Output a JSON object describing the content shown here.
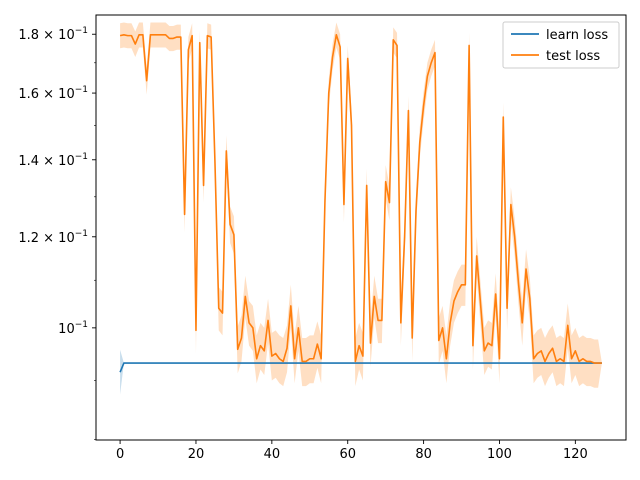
{
  "chart_data": {
    "type": "line",
    "title": "",
    "xlabel": "",
    "ylabel": "",
    "xlim": [
      -6.35,
      133.35
    ],
    "ylim_log10": [
      -1.0975,
      -0.728
    ],
    "yscale": "log",
    "grid": false,
    "legend": {
      "placement": "top-right",
      "entries": [
        "learn loss",
        "test loss"
      ]
    },
    "x_ticks": [
      {
        "value": 0,
        "label": "0"
      },
      {
        "value": 20,
        "label": "20"
      },
      {
        "value": 40,
        "label": "40"
      },
      {
        "value": 60,
        "label": "60"
      },
      {
        "value": 80,
        "label": "80"
      },
      {
        "value": 100,
        "label": "100"
      },
      {
        "value": 120,
        "label": "120"
      }
    ],
    "y_ticks": [
      {
        "value": 0.1,
        "base": "10",
        "exp": "−1",
        "mantissa": ""
      },
      {
        "value": 0.12,
        "base": "10",
        "exp": "−1",
        "mantissa": "1.2 × "
      },
      {
        "value": 0.14,
        "base": "10",
        "exp": "−1",
        "mantissa": "1.4 × "
      },
      {
        "value": 0.16,
        "base": "10",
        "exp": "−1",
        "mantissa": "1.6 × "
      },
      {
        "value": 0.18,
        "base": "10",
        "exp": "−1",
        "mantissa": "1.8 × "
      }
    ],
    "series": [
      {
        "name": "learn loss",
        "color": "#1f77b4",
        "band_color": "#1f77b4",
        "x": [
          0,
          1,
          127
        ],
        "y": [
          0.0915,
          0.0932,
          0.0932
        ],
        "lower": [
          0.0875,
          0.0932,
          0.0932
        ],
        "upper": [
          0.0957,
          0.0932,
          0.0932
        ]
      },
      {
        "name": "test loss",
        "color": "#ff7f0e",
        "band_color": "#ff7f0e",
        "x": [
          0,
          1,
          2,
          3,
          4,
          5,
          6,
          7,
          8,
          9,
          10,
          11,
          12,
          13,
          14,
          15,
          16,
          17,
          18,
          19,
          20,
          21,
          22,
          23,
          24,
          25,
          26,
          27,
          28,
          29,
          30,
          31,
          32,
          33,
          34,
          35,
          36,
          37,
          38,
          39,
          40,
          41,
          42,
          43,
          44,
          45,
          46,
          47,
          48,
          49,
          50,
          51,
          52,
          53,
          54,
          55,
          56,
          57,
          58,
          59,
          60,
          61,
          62,
          63,
          64,
          65,
          66,
          67,
          68,
          69,
          70,
          71,
          72,
          73,
          74,
          75,
          76,
          77,
          78,
          79,
          80,
          81,
          82,
          83,
          84,
          85,
          86,
          87,
          88,
          89,
          90,
          91,
          92,
          93,
          94,
          95,
          96,
          97,
          98,
          99,
          100,
          101,
          102,
          103,
          104,
          105,
          106,
          107,
          108,
          109,
          110,
          111,
          112,
          113,
          114,
          115,
          116,
          117,
          118,
          119,
          120,
          121,
          122,
          123,
          124,
          125,
          126,
          127
        ],
        "y": [
          0.1795,
          0.1798,
          0.1795,
          0.1795,
          0.1765,
          0.1798,
          0.1798,
          0.164,
          0.1798,
          0.1798,
          0.1798,
          0.1798,
          0.1798,
          0.1785,
          0.1785,
          0.179,
          0.179,
          0.1255,
          0.1745,
          0.1795,
          0.0995,
          0.177,
          0.133,
          0.1795,
          0.179,
          0.1395,
          0.104,
          0.103,
          0.1425,
          0.123,
          0.1205,
          0.0958,
          0.098,
          0.1065,
          0.101,
          0.1,
          0.094,
          0.0965,
          0.0955,
          0.1015,
          0.0945,
          0.095,
          0.094,
          0.0935,
          0.096,
          0.1045,
          0.094,
          0.1,
          0.0935,
          0.0935,
          0.094,
          0.094,
          0.0968,
          0.094,
          0.129,
          0.16,
          0.172,
          0.1798,
          0.1755,
          0.128,
          0.1715,
          0.15,
          0.0935,
          0.0965,
          0.0945,
          0.133,
          0.097,
          0.1065,
          0.1015,
          0.1015,
          0.134,
          0.1285,
          0.178,
          0.176,
          0.101,
          0.12,
          0.1545,
          0.098,
          0.1265,
          0.145,
          0.156,
          0.1655,
          0.17,
          0.1735,
          0.0975,
          0.1,
          0.094,
          0.101,
          0.1055,
          0.1075,
          0.109,
          0.109,
          0.176,
          0.0965,
          0.1155,
          0.105,
          0.0955,
          0.097,
          0.0965,
          0.107,
          0.094,
          0.1525,
          0.104,
          0.128,
          0.12,
          0.1095,
          0.101,
          0.1125,
          0.106,
          0.094,
          0.095,
          0.0955,
          0.0935,
          0.095,
          0.096,
          0.0935,
          0.094,
          0.0935,
          0.1005,
          0.094,
          0.0955,
          0.0935,
          0.094,
          0.0935,
          0.0935,
          0.0932,
          0.0932,
          0.0932
        ],
        "band_halfwidth": 0.0045
      }
    ]
  }
}
